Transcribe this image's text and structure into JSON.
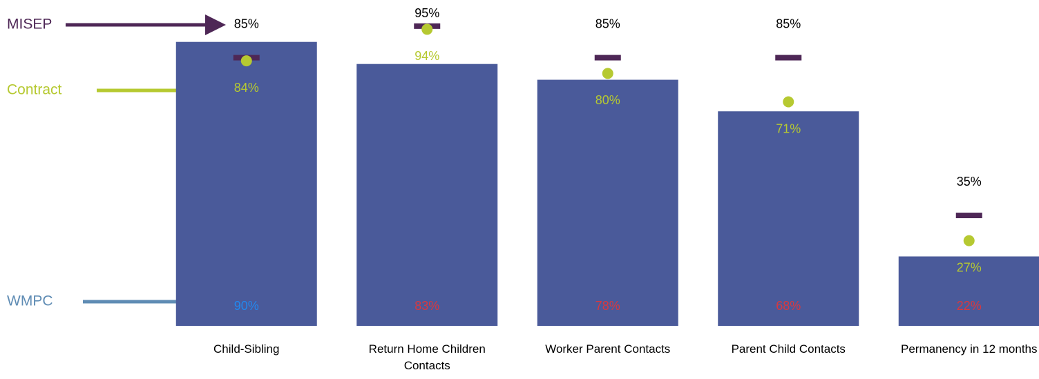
{
  "chart_data": {
    "type": "bar",
    "categories": [
      "Child-Sibling",
      "Return Home Children Contacts",
      "Worker Parent Contacts",
      "Parent Child Contacts",
      "Permanency in 12 months"
    ],
    "ylim": [
      0,
      100
    ],
    "series": [
      {
        "name": "WMPC",
        "color": "#4a5a9a",
        "legend_color": "#5f8cb4",
        "values": [
          90,
          83,
          78,
          68,
          22
        ],
        "value_labels": [
          "90%",
          "83%",
          "78%",
          "68%",
          "22%"
        ],
        "label_colors": [
          "#2288ee",
          "#d9383e",
          "#d9383e",
          "#d9383e",
          "#d9383e"
        ]
      },
      {
        "name": "MISEP",
        "marker": "dash",
        "color": "#4e2756",
        "label_color": "#000000",
        "values": [
          85,
          95,
          85,
          85,
          35
        ],
        "value_labels": [
          "85%",
          "95%",
          "85%",
          "85%",
          "35%"
        ]
      },
      {
        "name": "Contract",
        "marker": "dot",
        "color": "#b6c931",
        "label_color": "#b6c931",
        "values": [
          84,
          94,
          80,
          71,
          27
        ],
        "value_labels": [
          "84%",
          "94%",
          "80%",
          "71%",
          "27%"
        ]
      }
    ]
  }
}
